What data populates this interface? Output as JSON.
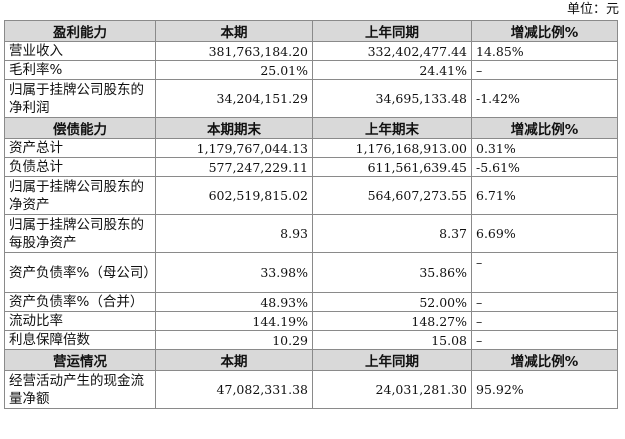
{
  "unit_label": "单位：元",
  "sections": [
    {
      "header": [
        "盈利能力",
        "本期",
        "上年同期",
        "增减比例%"
      ],
      "rows": [
        {
          "label": "营业收入",
          "current": "381,763,184.20",
          "previous": "332,402,477.44",
          "change": "14.85%"
        },
        {
          "label": "毛利率%",
          "current": "25.01%",
          "previous": "24.41%",
          "change": "–"
        },
        {
          "label": "归属于挂牌公司股东的净利润",
          "current": "34,204,151.29",
          "previous": "34,695,133.48",
          "change": "-1.42%"
        }
      ]
    },
    {
      "header": [
        "偿债能力",
        "本期期末",
        "上年期末",
        "增减比例%"
      ],
      "rows": [
        {
          "label": "资产总计",
          "current": "1,179,767,044.13",
          "previous": "1,176,168,913.00",
          "change": "0.31%"
        },
        {
          "label": "负债总计",
          "current": "577,247,229.11",
          "previous": "611,561,639.45",
          "change": "-5.61%"
        },
        {
          "label": "归属于挂牌公司股东的净资产",
          "current": "602,519,815.02",
          "previous": "564,607,273.55",
          "change": "6.71%"
        },
        {
          "label": "归属于挂牌公司股东的每股净资产",
          "current": "8.93",
          "previous": "8.37",
          "change": "6.69%"
        },
        {
          "label": "资产负债率%（母公司）",
          "current": "33.98%",
          "previous": "35.86%",
          "change": "–"
        },
        {
          "label": "资产负债率%（合并）",
          "current": "48.93%",
          "previous": "52.00%",
          "change": "–"
        },
        {
          "label": "流动比率",
          "current": "144.19%",
          "previous": "148.27%",
          "change": "–"
        },
        {
          "label": "利息保障倍数",
          "current": "10.29",
          "previous": "15.08",
          "change": "–"
        }
      ]
    },
    {
      "header": [
        "营运情况",
        "本期",
        "上年同期",
        "增减比例%"
      ],
      "rows": [
        {
          "label": "经营活动产生的现金流量净额",
          "current": "47,082,331.38",
          "previous": "24,031,281.30",
          "change": "95.92%"
        }
      ]
    }
  ]
}
